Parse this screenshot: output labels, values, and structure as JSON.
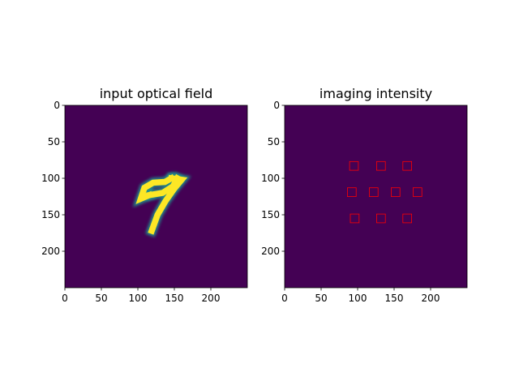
{
  "chart_data": [
    {
      "type": "heatmap",
      "title": "input optical field",
      "xlim": [
        0,
        250
      ],
      "ylim": [
        250,
        0
      ],
      "xticks": [
        0,
        50,
        100,
        150,
        200
      ],
      "yticks": [
        0,
        50,
        100,
        150,
        200
      ],
      "colormap": {
        "low": "#440154",
        "mid": "#21918c",
        "high": "#fde725"
      },
      "digit_strokes": [
        {
          "points": [
            [
              116,
              123
            ],
            [
              104,
              128
            ],
            [
              109,
              113
            ],
            [
              121,
              106
            ],
            [
              137,
              105
            ],
            [
              146,
              100
            ]
          ]
        },
        {
          "points": [
            [
              116,
              123
            ],
            [
              134,
              120
            ],
            [
              148,
              111
            ],
            [
              154,
              100
            ]
          ]
        },
        {
          "points": [
            [
              146,
              100
            ],
            [
              160,
              102
            ],
            [
              150,
              114
            ],
            [
              138,
              131
            ],
            [
              127,
              150
            ],
            [
              119,
              172
            ]
          ]
        }
      ]
    },
    {
      "type": "heatmap",
      "title": "imaging intensity",
      "xlim": [
        0,
        250
      ],
      "ylim": [
        250,
        0
      ],
      "xticks": [
        0,
        50,
        100,
        150,
        200
      ],
      "yticks": [
        0,
        50,
        100,
        150,
        200
      ],
      "background": "#440154",
      "detector_box_color": "#ff0000",
      "detector_regions": [
        {
          "x": 95,
          "y": 83
        },
        {
          "x": 132,
          "y": 83
        },
        {
          "x": 168,
          "y": 83
        },
        {
          "x": 92,
          "y": 119
        },
        {
          "x": 122,
          "y": 119
        },
        {
          "x": 152,
          "y": 119
        },
        {
          "x": 182,
          "y": 119
        },
        {
          "x": 96,
          "y": 155
        },
        {
          "x": 132,
          "y": 155
        },
        {
          "x": 168,
          "y": 155
        }
      ],
      "detector_box_size": 12
    }
  ]
}
